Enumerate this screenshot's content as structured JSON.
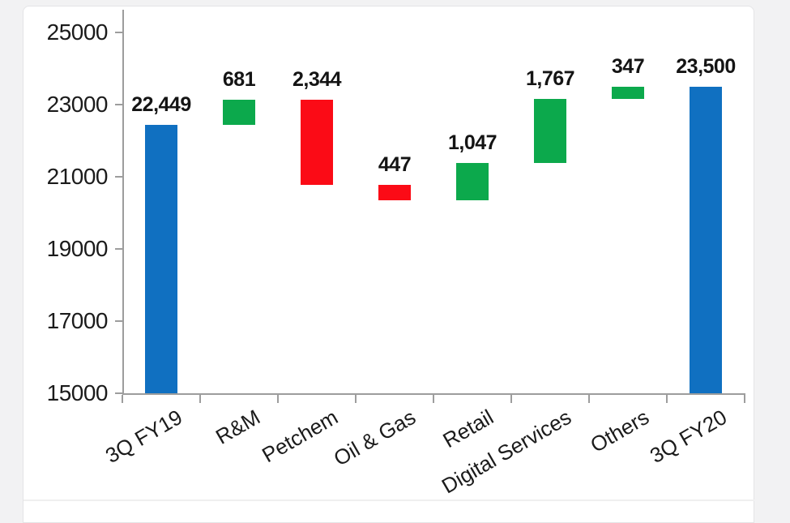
{
  "chart_data": {
    "type": "bar",
    "subtype": "waterfall",
    "title": "",
    "xlabel": "",
    "ylabel": "",
    "categories": [
      "3Q FY19",
      "R&M",
      "Petchem",
      "Oil & Gas",
      "Retail",
      "Digital Services",
      "Others",
      "3Q FY20"
    ],
    "values": [
      22449,
      681,
      -2344,
      -447,
      1047,
      1767,
      347,
      23500
    ],
    "bar_kinds": [
      "total",
      "delta",
      "delta",
      "delta",
      "delta",
      "delta",
      "delta",
      "total"
    ],
    "data_labels": [
      "22,449",
      "681",
      "2,344",
      "447",
      "1,047",
      "1,767",
      "347",
      "23,500"
    ],
    "running_totals": [
      22449,
      23130,
      20786,
      20339,
      21386,
      23153,
      23500,
      23500
    ],
    "ylim": [
      15000,
      25000
    ],
    "yticks": [
      25000,
      23000,
      21000,
      19000,
      17000,
      15000
    ],
    "ytick_labels": [
      "25000",
      "23000",
      "21000",
      "19000",
      "17000",
      "15000"
    ],
    "grid": false,
    "legend": "none",
    "x_label_rotation_deg": -30,
    "colors": {
      "total": "#1070c1",
      "increase": "#0ca94c",
      "decrease": "#fb0b16",
      "axis": "#9d9d9d",
      "text": "#1b1b1b"
    }
  }
}
